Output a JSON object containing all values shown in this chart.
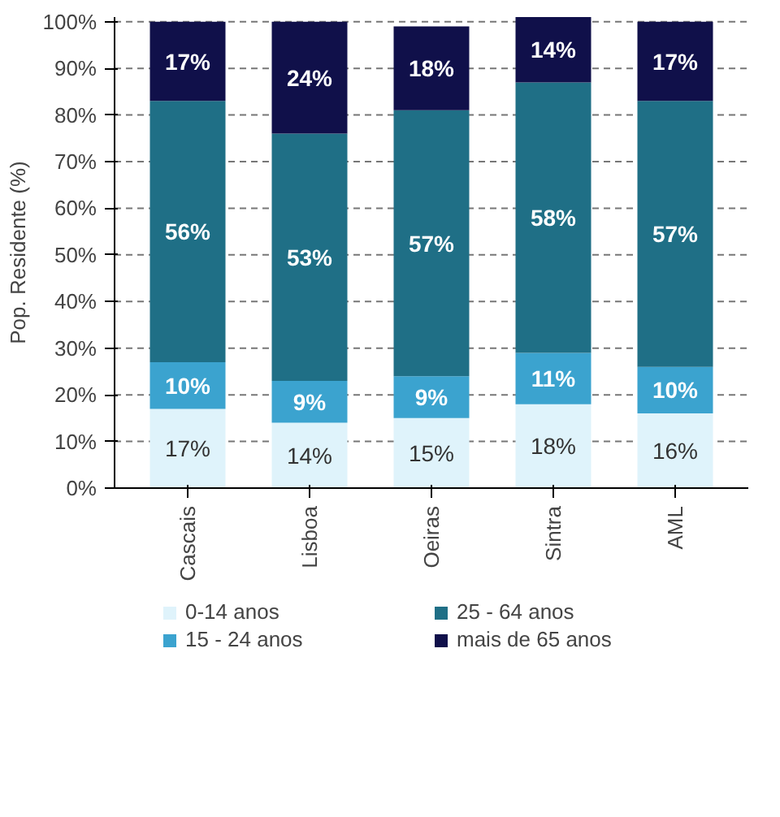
{
  "chart_data": {
    "type": "bar",
    "stacked": true,
    "ylabel": "Pop. Residente (%)",
    "categories": [
      "Cascais",
      "Lisboa",
      "Oeiras",
      "Sintra",
      "AML"
    ],
    "series": [
      {
        "name": "0-14 anos",
        "color": "#dff3fb",
        "values": [
          17,
          14,
          15,
          18,
          16
        ],
        "value_labels": [
          "17%",
          "14%",
          "15%",
          "18%",
          "16%"
        ]
      },
      {
        "name": "15 - 24 anos",
        "color": "#3ba3cf",
        "values": [
          10,
          9,
          9,
          11,
          10
        ],
        "value_labels": [
          "10%",
          "9%",
          "9%",
          "11%",
          "10%"
        ]
      },
      {
        "name": "25 - 64 anos",
        "color": "#1f6f86",
        "values": [
          56,
          53,
          57,
          58,
          57
        ],
        "value_labels": [
          "56%",
          "53%",
          "57%",
          "58%",
          "57%"
        ]
      },
      {
        "name": "mais de 65 anos",
        "color": "#10104a",
        "values": [
          17,
          24,
          18,
          14,
          17
        ],
        "value_labels": [
          "17%",
          "24%",
          "18%",
          "14%",
          "17%"
        ]
      }
    ],
    "ylim": [
      0,
      101
    ],
    "yticks": [
      {
        "value": 0,
        "label": "0%"
      },
      {
        "value": 10,
        "label": "10%"
      },
      {
        "value": 20,
        "label": "20%"
      },
      {
        "value": 30,
        "label": "30%"
      },
      {
        "value": 40,
        "label": "40%"
      },
      {
        "value": 50,
        "label": "50%"
      },
      {
        "value": 60,
        "label": "60%"
      },
      {
        "value": 70,
        "label": "70%"
      },
      {
        "value": 80,
        "label": "80%"
      },
      {
        "value": 90,
        "label": "90%"
      },
      {
        "value": 100,
        "label": "100%"
      }
    ],
    "grid": "y",
    "legend": "bottom"
  }
}
